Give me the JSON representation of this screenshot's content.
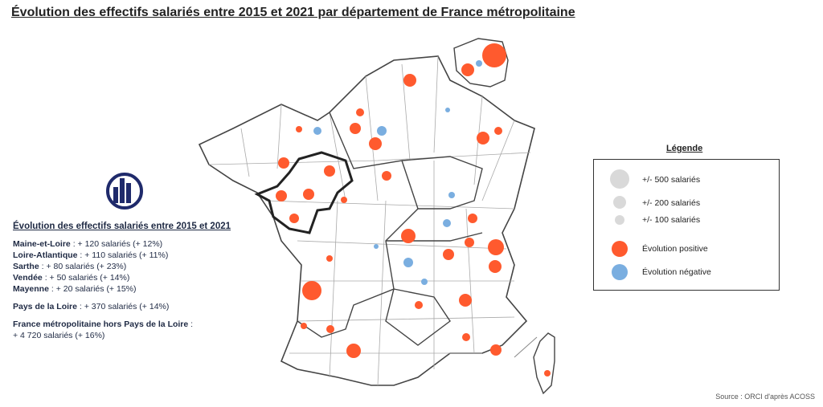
{
  "title": "Évolution des effectifs salariés entre 2015 et 2021 par département de France métropolitaine",
  "panel": {
    "title": "Évolution des effectifs salariés entre 2015 et 2021",
    "items": [
      {
        "name": "Maine-et-Loire",
        "text": ": + 120 salariés (+ 12%)"
      },
      {
        "name": "Loire-Atlantique",
        "text": ": + 110 salariés (+ 11%)"
      },
      {
        "name": "Sarthe",
        "text": ": + 80 salariés (+ 23%)"
      },
      {
        "name": "Vendée",
        "text": ": + 50 salariés (+ 14%)"
      },
      {
        "name": "Mayenne",
        "text": ": + 20 salariés (+ 15%)"
      }
    ],
    "region": {
      "name": "Pays de la Loire",
      "text": ": + 370 salariés (+ 14%)"
    },
    "france": {
      "name": "France métropolitaine hors Pays de la Loire",
      "text": ":",
      "detail": "+ 4 720 salariés (+ 16%)"
    }
  },
  "legend": {
    "title": "Légende",
    "sizes": [
      "+/- 500 salariés",
      "+/- 200 salariés",
      "+/- 100 salariés"
    ],
    "colors": [
      "Évolution positive",
      "Évolution négative"
    ]
  },
  "source": "Source : ORCI d'après ACOSS"
}
